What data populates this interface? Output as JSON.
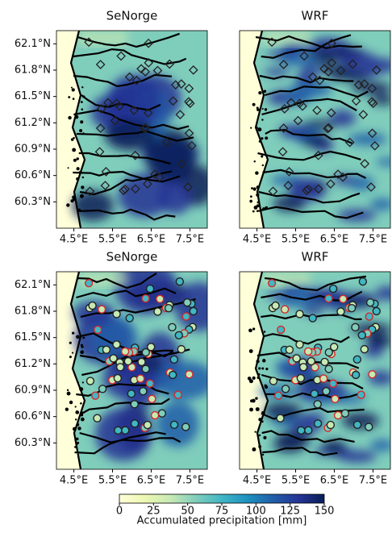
{
  "panels": [
    {
      "title": "SeNorge",
      "xticks": [
        {
          "value": 4.5,
          "label": "4.5°E"
        },
        {
          "value": 5.5,
          "label": "5.5°E"
        },
        {
          "value": 6.5,
          "label": "6.5°E"
        },
        {
          "value": 7.5,
          "label": "7.5°E"
        }
      ],
      "yticks": [
        {
          "value": 62.1,
          "label": "62.1°N"
        },
        {
          "value": 61.8,
          "label": "61.8°N"
        },
        {
          "value": 61.5,
          "label": "61.5°N"
        },
        {
          "value": 61.2,
          "label": "61.2°N"
        },
        {
          "value": 60.9,
          "label": "60.9°N"
        },
        {
          "value": 60.6,
          "label": "60.6°N"
        },
        {
          "value": 60.3,
          "label": "60.3°N"
        }
      ]
    },
    {
      "title": "WRF",
      "xticks": [
        {
          "value": 4.5,
          "label": "4.5°E"
        },
        {
          "value": 5.5,
          "label": "5.5°E"
        },
        {
          "value": 6.5,
          "label": "6.5°E"
        },
        {
          "value": 7.5,
          "label": "7.5°E"
        }
      ]
    },
    {
      "title": "SeNorge",
      "xticks": [
        {
          "value": 4.5,
          "label": "4.5°E"
        },
        {
          "value": 5.5,
          "label": "5.5°E"
        },
        {
          "value": 6.5,
          "label": "6.5°E"
        },
        {
          "value": 7.5,
          "label": "7.5°E"
        }
      ],
      "yticks": [
        {
          "value": 62.1,
          "label": "62.1°N"
        },
        {
          "value": 61.8,
          "label": "61.8°N"
        },
        {
          "value": 61.5,
          "label": "61.5°N"
        },
        {
          "value": 61.2,
          "label": "61.2°N"
        },
        {
          "value": 60.9,
          "label": "60.9°N"
        },
        {
          "value": 60.6,
          "label": "60.6°N"
        },
        {
          "value": 60.3,
          "label": "60.3°N"
        }
      ]
    },
    {
      "title": "WRF",
      "xticks": [
        {
          "value": 4.5,
          "label": "4.5°E"
        },
        {
          "value": 5.5,
          "label": "5.5°E"
        },
        {
          "value": 6.5,
          "label": "6.5°E"
        },
        {
          "value": 7.5,
          "label": "7.5°E"
        }
      ]
    }
  ],
  "map": {
    "xlim": [
      4.05,
      7.95
    ],
    "ylim": [
      60.0,
      62.25
    ]
  },
  "colorbar": {
    "label": "Accumulated precipitation [mm]",
    "lim": [
      0,
      150
    ],
    "ticks": [
      0,
      25,
      50,
      75,
      100,
      125,
      150
    ],
    "colors": [
      "#ffffd9",
      "#edf8b1",
      "#c7e9b4",
      "#7fcdbb",
      "#41b6c4",
      "#1d91c0",
      "#225ea8",
      "#253494",
      "#081d58"
    ]
  }
}
